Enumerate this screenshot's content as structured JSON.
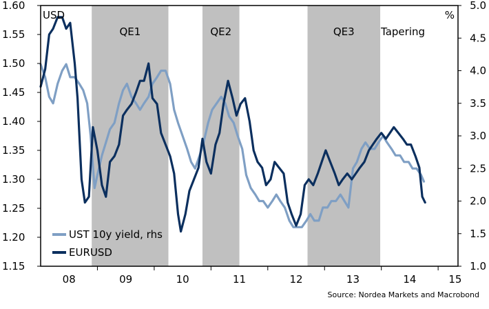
{
  "chart_data": {
    "type": "line",
    "title": "",
    "left_axis_label": "USD",
    "right_axis_label": "%",
    "left_ylim": [
      1.15,
      1.6
    ],
    "right_ylim": [
      1.0,
      5.0
    ],
    "left_ticks": [
      "1.15",
      "1.20",
      "1.25",
      "1.30",
      "1.35",
      "1.40",
      "1.45",
      "1.50",
      "1.55",
      "1.60"
    ],
    "right_ticks": [
      "1.0",
      "1.5",
      "2.0",
      "2.5",
      "3.0",
      "3.5",
      "4.0",
      "4.5",
      "5.0"
    ],
    "x_labels": [
      "08",
      "09",
      "10",
      "11",
      "12",
      "13",
      "14",
      "15"
    ],
    "x_range": [
      2008.0,
      2015.35
    ],
    "regions": [
      {
        "label": "QE1",
        "start": 2008.9,
        "end": 2010.25
      },
      {
        "label": "QE2",
        "start": 2010.85,
        "end": 2011.5
      },
      {
        "label": "QE3",
        "start": 2012.7,
        "end": 2013.98
      },
      {
        "label": "Tapering",
        "start": 2013.98,
        "end": 2014.78
      }
    ],
    "region_color": "#c0c0c0",
    "legend": [
      "UST 10y yield, rhs",
      "EURUSD"
    ],
    "source": "Source: Nordea Markets and Macrobond",
    "series": [
      {
        "name": "EURUSD",
        "axis": "left",
        "color": "#0b2f5e",
        "x": [
          2008.0,
          2008.08,
          2008.15,
          2008.22,
          2008.3,
          2008.38,
          2008.45,
          2008.52,
          2008.6,
          2008.65,
          2008.72,
          2008.78,
          2008.85,
          2008.92,
          2009.0,
          2009.08,
          2009.15,
          2009.22,
          2009.3,
          2009.38,
          2009.45,
          2009.52,
          2009.6,
          2009.68,
          2009.75,
          2009.82,
          2009.9,
          2009.97,
          2010.05,
          2010.12,
          2010.2,
          2010.28,
          2010.35,
          2010.42,
          2010.47,
          2010.55,
          2010.62,
          2010.7,
          2010.78,
          2010.85,
          2010.92,
          2011.0,
          2011.08,
          2011.15,
          2011.22,
          2011.3,
          2011.38,
          2011.45,
          2011.52,
          2011.6,
          2011.68,
          2011.75,
          2011.82,
          2011.9,
          2011.97,
          2012.05,
          2012.12,
          2012.2,
          2012.28,
          2012.35,
          2012.42,
          2012.5,
          2012.58,
          2012.65,
          2012.72,
          2012.8,
          2012.88,
          2012.95,
          2013.02,
          2013.1,
          2013.18,
          2013.25,
          2013.32,
          2013.4,
          2013.48,
          2013.55,
          2013.62,
          2013.7,
          2013.78,
          2013.85,
          2013.92,
          2014.0,
          2014.08,
          2014.15,
          2014.22,
          2014.3,
          2014.38,
          2014.45,
          2014.52,
          2014.6,
          2014.67,
          2014.72,
          2014.77
        ],
        "values": [
          1.46,
          1.49,
          1.55,
          1.56,
          1.58,
          1.58,
          1.56,
          1.57,
          1.5,
          1.44,
          1.3,
          1.26,
          1.27,
          1.39,
          1.35,
          1.29,
          1.27,
          1.33,
          1.34,
          1.36,
          1.41,
          1.42,
          1.43,
          1.45,
          1.47,
          1.47,
          1.5,
          1.44,
          1.43,
          1.38,
          1.36,
          1.34,
          1.31,
          1.24,
          1.21,
          1.24,
          1.28,
          1.3,
          1.32,
          1.37,
          1.33,
          1.31,
          1.36,
          1.38,
          1.43,
          1.47,
          1.44,
          1.41,
          1.43,
          1.44,
          1.4,
          1.35,
          1.33,
          1.32,
          1.29,
          1.3,
          1.33,
          1.32,
          1.31,
          1.26,
          1.24,
          1.22,
          1.24,
          1.29,
          1.3,
          1.29,
          1.31,
          1.33,
          1.35,
          1.33,
          1.31,
          1.29,
          1.3,
          1.31,
          1.3,
          1.31,
          1.32,
          1.33,
          1.35,
          1.36,
          1.37,
          1.38,
          1.37,
          1.38,
          1.39,
          1.38,
          1.37,
          1.36,
          1.36,
          1.34,
          1.32,
          1.27,
          1.26
        ]
      },
      {
        "name": "UST 10y yield, rhs",
        "axis": "right",
        "color": "#7f9fc4",
        "x": [
          2008.0,
          2008.08,
          2008.15,
          2008.22,
          2008.3,
          2008.38,
          2008.45,
          2008.52,
          2008.6,
          2008.68,
          2008.75,
          2008.82,
          2008.88,
          2008.95,
          2009.0,
          2009.08,
          2009.15,
          2009.22,
          2009.3,
          2009.38,
          2009.45,
          2009.52,
          2009.6,
          2009.68,
          2009.75,
          2009.82,
          2009.9,
          2009.97,
          2010.05,
          2010.12,
          2010.2,
          2010.28,
          2010.35,
          2010.42,
          2010.5,
          2010.58,
          2010.65,
          2010.72,
          2010.8,
          2010.87,
          2010.95,
          2011.02,
          2011.1,
          2011.18,
          2011.25,
          2011.32,
          2011.4,
          2011.47,
          2011.55,
          2011.62,
          2011.7,
          2011.78,
          2011.85,
          2011.92,
          2012.0,
          2012.08,
          2012.15,
          2012.22,
          2012.3,
          2012.38,
          2012.45,
          2012.52,
          2012.6,
          2012.68,
          2012.75,
          2012.82,
          2012.9,
          2012.97,
          2013.05,
          2013.12,
          2013.2,
          2013.28,
          2013.35,
          2013.42,
          2013.5,
          2013.57,
          2013.65,
          2013.72,
          2013.8,
          2013.88,
          2013.95,
          2014.03,
          2014.1,
          2014.18,
          2014.25,
          2014.33,
          2014.4,
          2014.48,
          2014.55,
          2014.62,
          2014.7,
          2014.75
        ],
        "values": [
          4.1,
          3.9,
          3.6,
          3.5,
          3.8,
          4.0,
          4.1,
          3.9,
          3.9,
          3.8,
          3.7,
          3.5,
          3.0,
          2.2,
          2.4,
          2.7,
          2.9,
          3.1,
          3.2,
          3.5,
          3.7,
          3.8,
          3.6,
          3.5,
          3.4,
          3.5,
          3.6,
          3.8,
          3.9,
          4.0,
          4.0,
          3.8,
          3.4,
          3.2,
          3.0,
          2.8,
          2.6,
          2.5,
          2.7,
          2.9,
          3.2,
          3.4,
          3.5,
          3.6,
          3.5,
          3.3,
          3.2,
          3.0,
          2.8,
          2.4,
          2.2,
          2.1,
          2.0,
          2.0,
          1.9,
          2.0,
          2.1,
          2.0,
          1.9,
          1.7,
          1.6,
          1.6,
          1.6,
          1.7,
          1.8,
          1.7,
          1.7,
          1.9,
          1.9,
          2.0,
          2.0,
          2.1,
          2.0,
          1.9,
          2.5,
          2.6,
          2.8,
          2.9,
          2.8,
          2.8,
          2.9,
          3.0,
          2.9,
          2.8,
          2.7,
          2.7,
          2.6,
          2.6,
          2.5,
          2.5,
          2.4,
          2.3
        ]
      }
    ]
  }
}
